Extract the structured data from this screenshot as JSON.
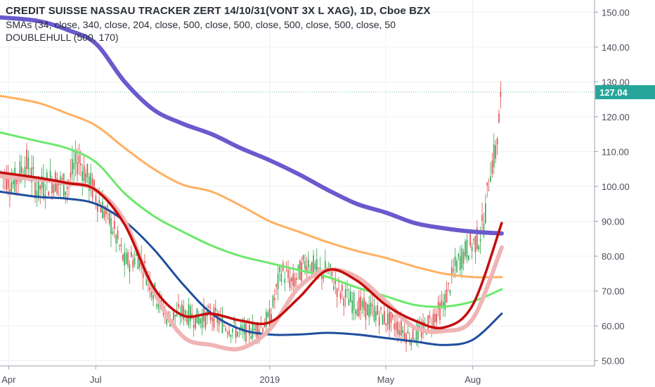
{
  "legend": {
    "title": "CREDIT SUISSE NASSAU TRACKER ZERT 14/10/31(VONT 3X L XAG), 1D, Cboe BZX",
    "smas": "SMAs (34, close, 340, close, 204, close, 500, close, 500, close, 500, close, 500, close, 50",
    "doublehull": "DOUBLEHULL (500, 170)"
  },
  "last_price": "127.04",
  "colors": {
    "sma_purple": "#6a5acd",
    "sma_orange": "#ffb061",
    "sma_green": "#6be86b",
    "sma_blue": "#1f4e9e",
    "hull_red": "#c40c0c",
    "hull_pink": "#f0b4b4",
    "candle_up": "#2ea84f",
    "candle_down": "#e04a4a",
    "price_label": "#26a69a"
  },
  "chart_data": {
    "type": "line",
    "y_ticks": [
      "150.00",
      "140.00",
      "130.00",
      "120.00",
      "110.00",
      "100.00",
      "90.00",
      "80.00",
      "70.00",
      "60.00",
      "50.00"
    ],
    "y_tick_values": [
      150,
      140,
      130,
      120,
      110,
      100,
      90,
      80,
      70,
      60,
      50
    ],
    "ylim": [
      48.5,
      153.5
    ],
    "x_ticks": [
      "Apr",
      "Jul",
      "2019",
      "May",
      "Aug"
    ],
    "x_tick_positions": [
      0.0,
      3.0,
      9.0,
      13.0,
      16.0
    ],
    "xlim": [
      -0.3,
      20.2
    ],
    "grid": true,
    "series": [
      {
        "key": "sma_purple",
        "width": 6,
        "x": [
          -0.3,
          1,
          2,
          3,
          4,
          5,
          6,
          7,
          8,
          9,
          10,
          11,
          12,
          13,
          14,
          15,
          16,
          17
        ],
        "y": [
          148.5,
          147.5,
          145,
          141,
          130,
          122,
          118,
          115,
          111,
          107.5,
          103.5,
          99,
          95,
          92.5,
          89.5,
          88,
          87,
          86.5
        ]
      },
      {
        "key": "sma_orange",
        "width": 3,
        "x": [
          -0.3,
          1,
          2,
          3,
          4,
          5,
          6,
          7,
          8,
          9,
          10,
          11,
          12,
          13,
          14,
          15,
          16,
          17
        ],
        "y": [
          126,
          124,
          121,
          117.5,
          111,
          105,
          100.5,
          98.5,
          94.5,
          90,
          87,
          84,
          81.5,
          79.5,
          77,
          75,
          74,
          74
        ]
      },
      {
        "key": "sma_green",
        "width": 3,
        "x": [
          -0.3,
          1,
          2,
          3,
          4,
          5,
          6,
          7,
          8,
          9,
          10,
          11,
          12,
          13,
          14,
          15,
          16,
          17
        ],
        "y": [
          115.5,
          113,
          111,
          107,
          98,
          91.5,
          87,
          83,
          80,
          78,
          76,
          74,
          71,
          68.5,
          66,
          65.5,
          67,
          70.5
        ]
      },
      {
        "key": "sma_blue",
        "width": 3,
        "x": [
          -0.3,
          1,
          2,
          3,
          4,
          5,
          6,
          7,
          8,
          9,
          10,
          11,
          12,
          13,
          14,
          15,
          16,
          17
        ],
        "y": [
          98.5,
          97,
          96.5,
          95,
          90,
          82,
          72,
          63.5,
          59,
          57.5,
          57.5,
          58,
          57.5,
          56.5,
          55.5,
          54.5,
          56,
          63.5
        ]
      },
      {
        "key": "hull_pink",
        "width": 6,
        "x": [
          -0.3,
          1,
          2,
          3,
          4,
          5,
          6,
          7,
          8,
          9,
          10,
          11,
          12,
          13,
          14,
          15,
          16,
          17
        ],
        "y": [
          103,
          102,
          101,
          99,
          90,
          70,
          57,
          54.5,
          53.5,
          59,
          71,
          76,
          74,
          67,
          59.5,
          58.5,
          62,
          82.5
        ]
      },
      {
        "key": "hull_red",
        "width": 3.5,
        "x": [
          -0.3,
          1,
          2,
          3,
          4,
          5,
          6,
          7,
          8,
          9,
          10,
          11,
          12,
          13,
          14,
          15,
          16,
          17
        ],
        "y": [
          104,
          102.5,
          101,
          99,
          89,
          71,
          63,
          63.5,
          61.5,
          61,
          68,
          76,
          73,
          66,
          61.5,
          59.5,
          66,
          89.5
        ]
      }
    ],
    "price_path": {
      "x": [
        -0.3,
        0.2,
        0.6,
        1,
        1.5,
        2,
        2.4,
        2.8,
        3.1,
        3.6,
        4,
        4.5,
        5,
        5.5,
        6,
        6.5,
        7,
        7.5,
        8,
        8.5,
        9,
        9.4,
        9.8,
        10.3,
        10.7,
        11,
        11.4,
        11.8,
        12.2,
        12.6,
        13,
        13.4,
        13.8,
        14.2,
        14.6,
        15,
        15.4,
        15.8,
        16.2,
        16.4,
        16.6,
        16.8,
        17
      ],
      "y": [
        104,
        101,
        107,
        99,
        102,
        100,
        108,
        101,
        96,
        88,
        78,
        80,
        70,
        62,
        64,
        62,
        63,
        60,
        58,
        59,
        62,
        76,
        72,
        79,
        75,
        76,
        70,
        67,
        65,
        64,
        62,
        60,
        57,
        58,
        62,
        66,
        77,
        82,
        85,
        90,
        105,
        110,
        127
      ]
    }
  }
}
